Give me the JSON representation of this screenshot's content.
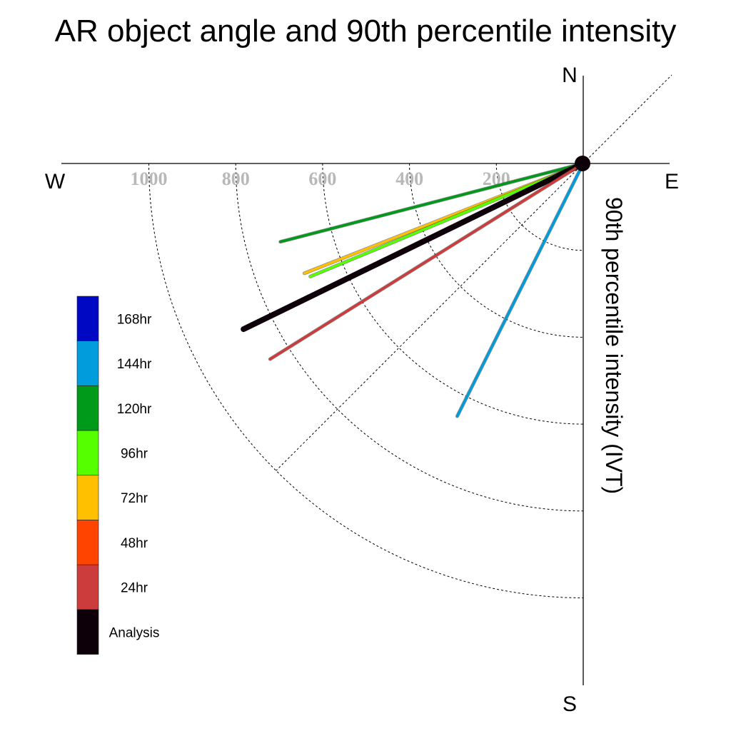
{
  "chart_data": {
    "type": "polar-vector",
    "title": "AR object angle and 90th percentile intensity",
    "compass": {
      "north": "N",
      "south": "S",
      "east": "E",
      "west": "W"
    },
    "radial_axis_label": "90th percentile intensity (IVT)",
    "radial_ticks": [
      200,
      400,
      600,
      800,
      1000
    ],
    "radial_max": 1200,
    "gridlines": "dashed",
    "legend_position": "left",
    "series": [
      {
        "name": "120hr",
        "intensity": 720,
        "angle_deg_below_west": 14.5,
        "color": "#009a1a"
      },
      {
        "name": "72hr",
        "intensity": 690,
        "angle_deg_below_west": 21.5,
        "color": "#ffc000"
      },
      {
        "name": "96hr",
        "intensity": 680,
        "angle_deg_below_west": 22.5,
        "color": "#55ff00"
      },
      {
        "name": "Analysis",
        "intensity": 870,
        "angle_deg_below_west": 26.0,
        "color": "#0d0008"
      },
      {
        "name": "24hr",
        "intensity": 850,
        "angle_deg_below_west": 32.0,
        "color": "#cc3c3c"
      },
      {
        "name": "144hr",
        "intensity": 650,
        "angle_deg_below_west": 63.5,
        "color": "#009cdc"
      }
    ],
    "legend": [
      {
        "label": "168hr",
        "color": "#0008c4"
      },
      {
        "label": "144hr",
        "color": "#009cdc"
      },
      {
        "label": "120hr",
        "color": "#009a1a"
      },
      {
        "label": "96hr",
        "color": "#55ff00"
      },
      {
        "label": "72hr",
        "color": "#ffc000"
      },
      {
        "label": "48hr",
        "color": "#ff4400"
      },
      {
        "label": "24hr",
        "color": "#cc3c3c"
      },
      {
        "label": "Analysis",
        "color": "#0d0008"
      }
    ]
  }
}
